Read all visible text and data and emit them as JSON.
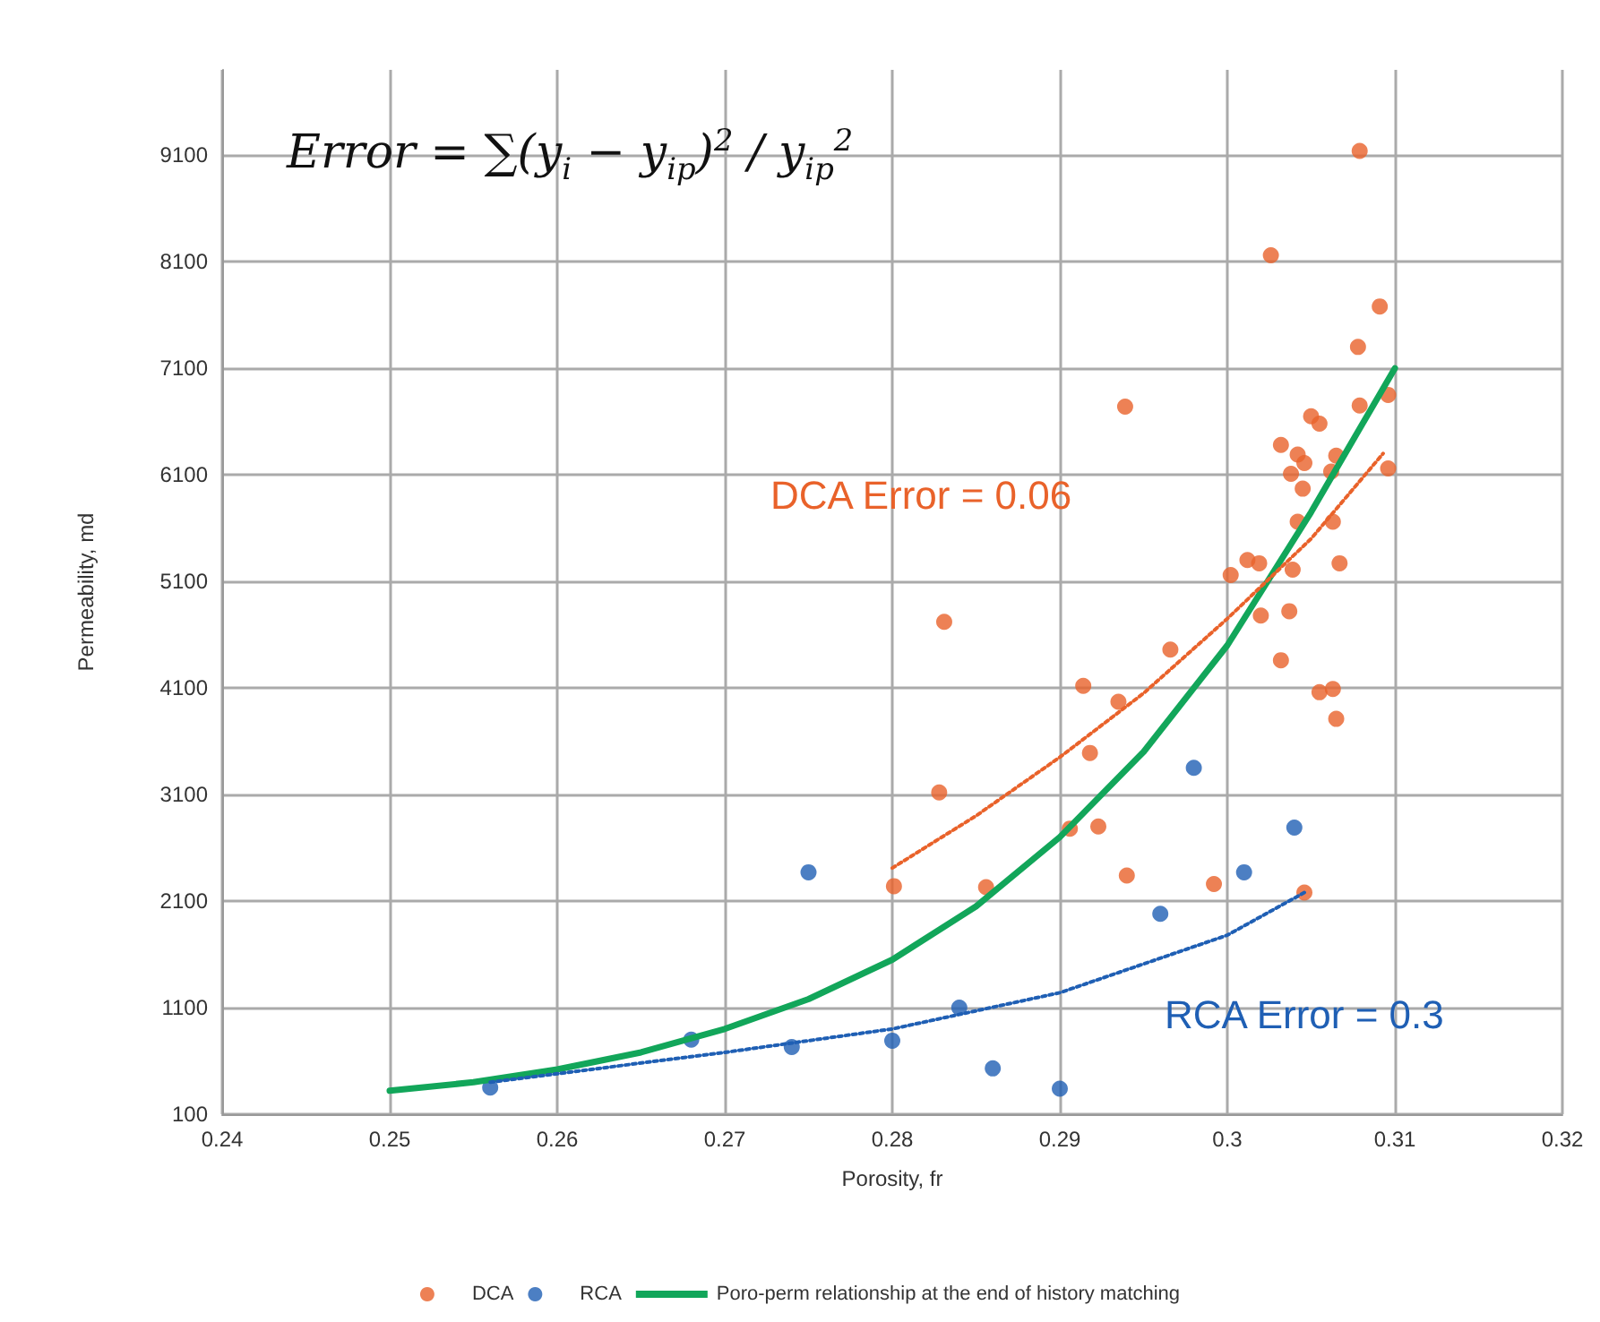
{
  "chart_data": {
    "type": "scatter",
    "xlabel": "Porosity, fr",
    "ylabel": "Permeability, md",
    "xlim": [
      0.24,
      0.32
    ],
    "xticks": [
      0.24,
      0.25,
      0.26,
      0.27,
      0.28,
      0.29,
      0.3,
      0.31,
      0.32
    ],
    "ylim": [
      100,
      9900
    ],
    "yticks": [
      100,
      1100,
      2100,
      3100,
      4100,
      5100,
      6100,
      7100,
      8100,
      9100
    ],
    "grid": true,
    "legend": "bottom",
    "annotations": [
      "Error = ∑(y$_{i}$ − y$_{ip}$)$^{2}$ / y$_{ip}$$^{2}$",
      "DCA Error = 0.06",
      "RCA Error = 0.3"
    ],
    "series": [
      {
        "name": "DCA",
        "color": "#e9622a",
        "marker": "circle",
        "x": [
          0.3079,
          0.3026,
          0.3091,
          0.3078,
          0.2939,
          0.3079,
          0.3096,
          0.305,
          0.3055,
          0.3032,
          0.3042,
          0.3046,
          0.3065,
          0.3062,
          0.3038,
          0.3045,
          0.3096,
          0.3042,
          0.3063,
          0.3012,
          0.3019,
          0.3002,
          0.3039,
          0.3067,
          0.302,
          0.3037,
          0.3032,
          0.2831,
          0.2966,
          0.3055,
          0.3063,
          0.3065,
          0.2914,
          0.2935,
          0.2918,
          0.2828,
          0.2906,
          0.2923,
          0.2801,
          0.2856,
          0.294,
          0.2992,
          0.3046
        ],
        "values": [
          9140,
          8160,
          7680,
          7300,
          6740,
          6750,
          6850,
          6650,
          6580,
          6380,
          6290,
          6210,
          6280,
          6130,
          6110,
          5970,
          6160,
          5660,
          5660,
          5300,
          5270,
          5160,
          5210,
          5270,
          4780,
          4820,
          4360,
          4720,
          4460,
          4060,
          4090,
          3810,
          4120,
          3970,
          3490,
          3120,
          2780,
          2800,
          2240,
          2230,
          2340,
          2260,
          2180
        ]
      },
      {
        "name": "RCA",
        "color": "#1f5fb4",
        "marker": "circle",
        "x": [
          0.256,
          0.268,
          0.274,
          0.275,
          0.28,
          0.284,
          0.286,
          0.29,
          0.296,
          0.298,
          0.301,
          0.304
        ],
        "values": [
          350,
          800,
          730,
          2370,
          790,
          1100,
          530,
          340,
          1980,
          3350,
          2370,
          2790
        ]
      },
      {
        "type": "line",
        "name": "Poro-perm relationship at the end of history matching",
        "color": "#12a65a",
        "marker": "none",
        "line_style": "solid",
        "x": [
          0.25,
          0.255,
          0.26,
          0.265,
          0.27,
          0.275,
          0.28,
          0.285,
          0.29,
          0.295,
          0.3,
          0.305,
          0.31
        ],
        "values": [
          320,
          400,
          520,
          680,
          900,
          1180,
          1550,
          2050,
          2700,
          3500,
          4500,
          5750,
          7100
        ]
      },
      {
        "type": "line",
        "color": "#e9622a",
        "marker": "none",
        "line_style": "dotted",
        "x": [
          0.28,
          0.285,
          0.29,
          0.295,
          0.3,
          0.305,
          0.3093
        ],
        "values": [
          2410,
          2900,
          3450,
          4050,
          4750,
          5500,
          6300
        ]
      },
      {
        "type": "line",
        "color": "#1f5fb4",
        "marker": "none",
        "line_style": "dotted",
        "x": [
          0.256,
          0.26,
          0.27,
          0.28,
          0.29,
          0.3,
          0.3046
        ],
        "values": [
          400,
          480,
          680,
          900,
          1240,
          1780,
          2180
        ]
      }
    ]
  }
}
